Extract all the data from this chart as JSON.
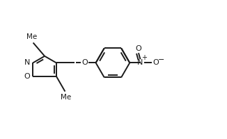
{
  "background": "#ffffff",
  "line_color": "#1a1a1a",
  "line_width": 1.4,
  "figsize": [
    3.26,
    2.0
  ],
  "dpi": 100,
  "xlim": [
    -2.8,
    3.6
  ],
  "ylim": [
    -1.4,
    1.3
  ]
}
